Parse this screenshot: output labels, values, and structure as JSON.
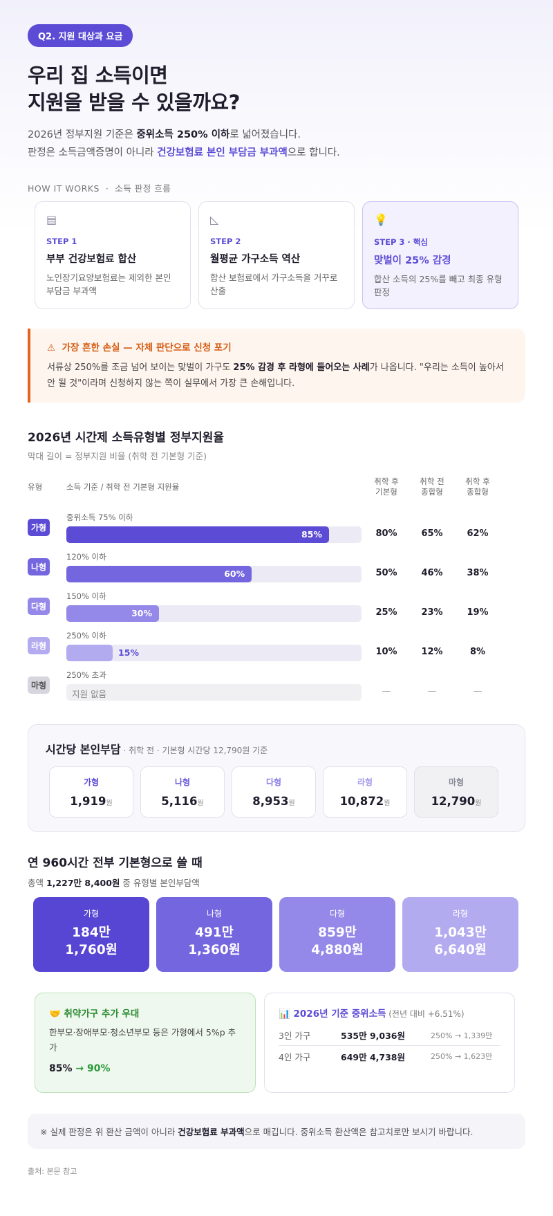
{
  "badge": "Q2. 지원 대상과 요금",
  "title": {
    "line1": "우리 집 소득이면",
    "line2": "지원을 받을 수 있을까요?"
  },
  "intro": {
    "line1_a": "2026년 정부지원 기준은 ",
    "line1_b": "중위소득 250% 이하",
    "line1_c": "로 넓어졌습니다.",
    "line2_a": "판정은 소득금액증명이 아니라 ",
    "line2_b": "건강보험료 본인 부담금 부과액",
    "line2_c": "으로 합니다."
  },
  "how": {
    "label": "HOW IT WORKS",
    "sep": "·",
    "sub": "소득 판정 흐름"
  },
  "steps": [
    {
      "icon": "document-icon",
      "glyph": "▤",
      "label": "STEP 1",
      "title": "부부 건강보험료 합산",
      "desc": "노인장기요양보험료는 제외한 본인 부담금 부과액"
    },
    {
      "icon": "ruler-icon",
      "glyph": "◺",
      "label": "STEP 2",
      "title": "월평균 가구소득 역산",
      "desc": "합산 보험료에서 가구소득을 거꾸로 산출"
    },
    {
      "icon": "lightbulb-icon",
      "glyph": "💡",
      "label": "STEP 3 · 핵심",
      "title": "맞벌이 25% 감경",
      "desc": "합산 소득의 25%를 빼고 최종 유형 판정"
    }
  ],
  "warning": {
    "icon": "⚠",
    "title": "가장 흔한 손실 — 자체 판단으로 신청 포기",
    "body_a": "서류상 250%를 조금 넘어 보이는 맞벌이 가구도 ",
    "body_b": "25% 감경 후 라형에 들어오는 사례",
    "body_c": "가 나옵니다. \"우리는 소득이 높아서 안 될 것\"이라며 신청하지 않는 쪽이 실무에서 가장 큰 손해입니다."
  },
  "table": {
    "title": "2026년 시간제 소득유형별 정부지원율",
    "subtitle": "막대 길이 = 정부지원 비율 (취학 전 기본형 기준)",
    "headers": {
      "type": "유형",
      "bar": "소득 기준 / 취학 전 기본형 지원율",
      "c1": "취학 후\n기본형",
      "c2": "취학 전\n종합형",
      "c3": "취학 후\n종합형"
    },
    "rows": [
      {
        "type": "가형",
        "color": "#5b4bd5",
        "criteria": "중위소득 75% 이하",
        "value": 85,
        "label": "85%",
        "c1": "80%",
        "c2": "65%",
        "c3": "62%"
      },
      {
        "type": "나형",
        "color": "#7366de",
        "criteria": "120% 이하",
        "value": 60,
        "label": "60%",
        "c1": "50%",
        "c2": "46%",
        "c3": "38%"
      },
      {
        "type": "다형",
        "color": "#9488e8",
        "criteria": "150% 이하",
        "value": 30,
        "label": "30%",
        "c1": "25%",
        "c2": "23%",
        "c3": "19%"
      },
      {
        "type": "라형",
        "color": "#b3abf0",
        "criteria": "250% 이하",
        "value": 15,
        "label": "15%",
        "c1": "10%",
        "c2": "12%",
        "c3": "8%"
      },
      {
        "type": "마형",
        "color": "#d7d6df",
        "criteria": "250% 초과",
        "value": 0,
        "label": "지원 없음",
        "c1": "—",
        "c2": "—",
        "c3": "—"
      }
    ]
  },
  "hourly": {
    "title": "시간당 본인부담",
    "note": " · 취학 전 · 기본형 시간당 12,790원 기준",
    "unit": "원",
    "cards": [
      {
        "name": "가형",
        "value": "1,919",
        "color": "#5b4bd5"
      },
      {
        "name": "나형",
        "value": "5,116",
        "color": "#6a5bdb"
      },
      {
        "name": "다형",
        "value": "8,953",
        "color": "#8a7ee6"
      },
      {
        "name": "라형",
        "value": "10,872",
        "color": "#a59cee"
      },
      {
        "name": "마형",
        "value": "12,790",
        "color": "#8a8a96"
      }
    ]
  },
  "annual": {
    "title": "연 960시간 전부 기본형으로 쓸 때",
    "sub_a": "총액 ",
    "sub_b": "1,227만 8,400원",
    "sub_c": " 중 유형별 본인부담액",
    "cards": [
      {
        "name": "가형",
        "line1": "184만",
        "line2": "1,760원",
        "color": "#5746d4"
      },
      {
        "name": "나형",
        "line1": "491만",
        "line2": "1,360원",
        "color": "#7366de"
      },
      {
        "name": "다형",
        "line1": "859만",
        "line2": "4,880원",
        "color": "#9488e8"
      },
      {
        "name": "라형",
        "line1": "1,043만",
        "line2": "6,640원",
        "color": "#b3abf0"
      }
    ]
  },
  "benefit": {
    "icon": "🤝",
    "title": "취약가구 추가 우대",
    "body": "한부모·장애부모·청소년부모 등은 가형에서 5%p 추가",
    "from": "85%",
    "arrow": "→",
    "to": "90%"
  },
  "median": {
    "icon": "📊",
    "title": "2026년 기준 중위소득",
    "note": " (전년 대비 +6.51%)",
    "rows": [
      {
        "household": "3인 가구",
        "amount": "535만 9,036원",
        "conv": "250% → 1,339만"
      },
      {
        "household": "4인 가구",
        "amount": "649만 4,738원",
        "conv": "250% → 1,623만"
      }
    ]
  },
  "footnote": {
    "a": "※ 실제 판정은 위 환산 금액이 아니라 ",
    "b": "건강보험료 부과액",
    "c": "으로 매깁니다. 중위소득 환산액은 참고치로만 보시기 바랍니다."
  },
  "source": "출처: 본문 참고"
}
